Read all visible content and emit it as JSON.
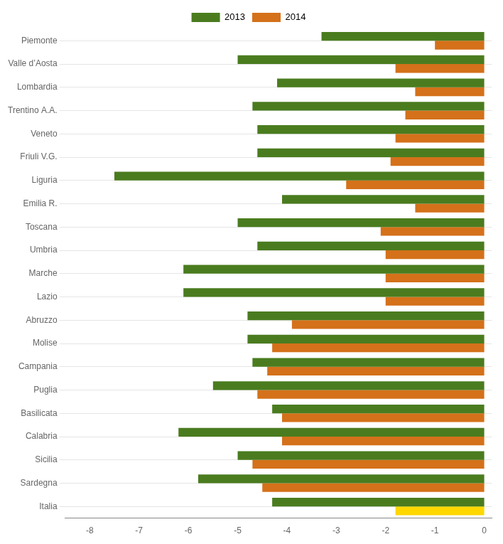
{
  "chart_data": {
    "type": "bar",
    "orientation": "horizontal",
    "categories": [
      "Piemonte",
      "Valle d’Aosta",
      "Lombardia",
      "Trentino A.A.",
      "Veneto",
      "Friuli V.G.",
      "Liguria",
      "Emilia R.",
      "Toscana",
      "Umbria",
      "Marche",
      "Lazio",
      "Abruzzo",
      "Molise",
      "Campania",
      "Puglia",
      "Basilicata",
      "Calabria",
      "Sicilia",
      "Sardegna",
      "Italia"
    ],
    "series": [
      {
        "name": "2013",
        "color": "#4a7c1f",
        "values": [
          -3.3,
          -5.0,
          -4.2,
          -4.7,
          -4.6,
          -4.6,
          -7.5,
          -4.1,
          -5.0,
          -4.6,
          -6.1,
          -6.1,
          -4.8,
          -4.8,
          -4.7,
          -5.5,
          -4.3,
          -6.2,
          -5.0,
          -5.8,
          -4.3
        ]
      },
      {
        "name": "2014",
        "color": "#d4711a",
        "colors": [
          "#d4711a",
          "#d4711a",
          "#d4711a",
          "#d4711a",
          "#d4711a",
          "#d4711a",
          "#d4711a",
          "#d4711a",
          "#d4711a",
          "#d4711a",
          "#d4711a",
          "#d4711a",
          "#d4711a",
          "#d4711a",
          "#d4711a",
          "#d4711a",
          "#d4711a",
          "#d4711a",
          "#d4711a",
          "#d4711a",
          "#ffd700"
        ],
        "values": [
          -1.0,
          -1.8,
          -1.4,
          -1.6,
          -1.8,
          -1.9,
          -2.8,
          -1.4,
          -2.1,
          -2.0,
          -2.0,
          -2.0,
          -3.9,
          -4.3,
          -4.4,
          -4.6,
          -4.1,
          -4.1,
          -4.7,
          -4.5,
          -1.8
        ]
      }
    ],
    "xlim": [
      -8.5,
      0.15
    ],
    "xticks": [
      -8,
      -7,
      -6,
      -5,
      -4,
      -3,
      -2,
      -1,
      0
    ],
    "grid": true,
    "legend": "top"
  }
}
